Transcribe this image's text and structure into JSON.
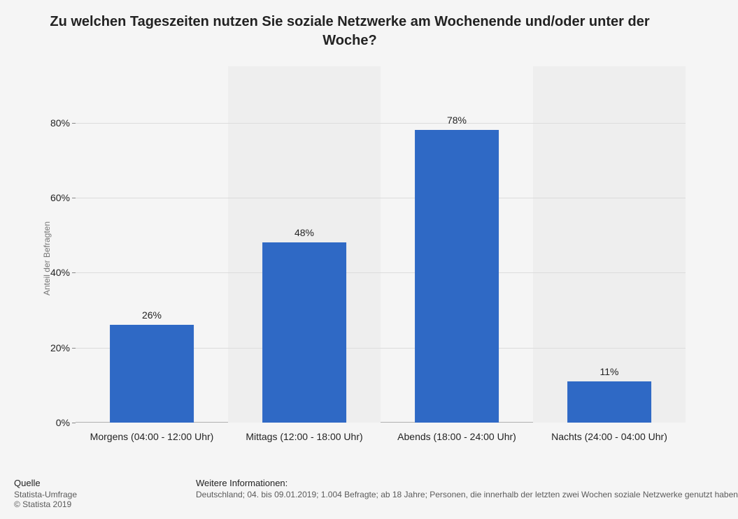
{
  "chart": {
    "type": "bar",
    "title": "Zu welchen Tageszeiten nutzen Sie soziale Netzwerke am Wochenende und/oder unter der Woche?",
    "title_fontsize": 20,
    "title_color": "#222222",
    "ylabel": "Anteil der Befragten",
    "ylabel_fontsize": 12,
    "ylabel_color": "#767676",
    "categories": [
      "Morgens (04:00 - 12:00 Uhr)",
      "Mittags (12:00 - 18:00 Uhr)",
      "Abends (18:00 - 24:00 Uhr)",
      "Nachts (24:00 - 04:00 Uhr)"
    ],
    "values": [
      26,
      48,
      78,
      11
    ],
    "value_labels": [
      "26%",
      "48%",
      "78%",
      "11%"
    ],
    "value_label_fontsize": 14,
    "bar_color": "#2f69c5",
    "bar_width_ratio": 0.55,
    "ylim": [
      0,
      95
    ],
    "yticks": [
      0,
      20,
      40,
      60,
      80
    ],
    "ytick_labels": [
      "0%",
      "20%",
      "40%",
      "60%",
      "80%"
    ],
    "tick_fontsize": 14,
    "background_color": "#f5f5f5",
    "band_alt_color": "#eeeeee",
    "grid_color": "#dcdcdc",
    "baseline_color": "#b0b0b0"
  },
  "footer": {
    "source_heading": "Quelle",
    "source_line1": "Statista-Umfrage",
    "source_line2": "© Statista 2019",
    "info_heading": "Weitere Informationen:",
    "info_text": "Deutschland; 04. bis 09.01.2019; 1.004 Befragte; ab 18 Jahre; Personen, die innerhalb der letzten zwei Wochen soziale Netzwerke genutzt haben"
  }
}
